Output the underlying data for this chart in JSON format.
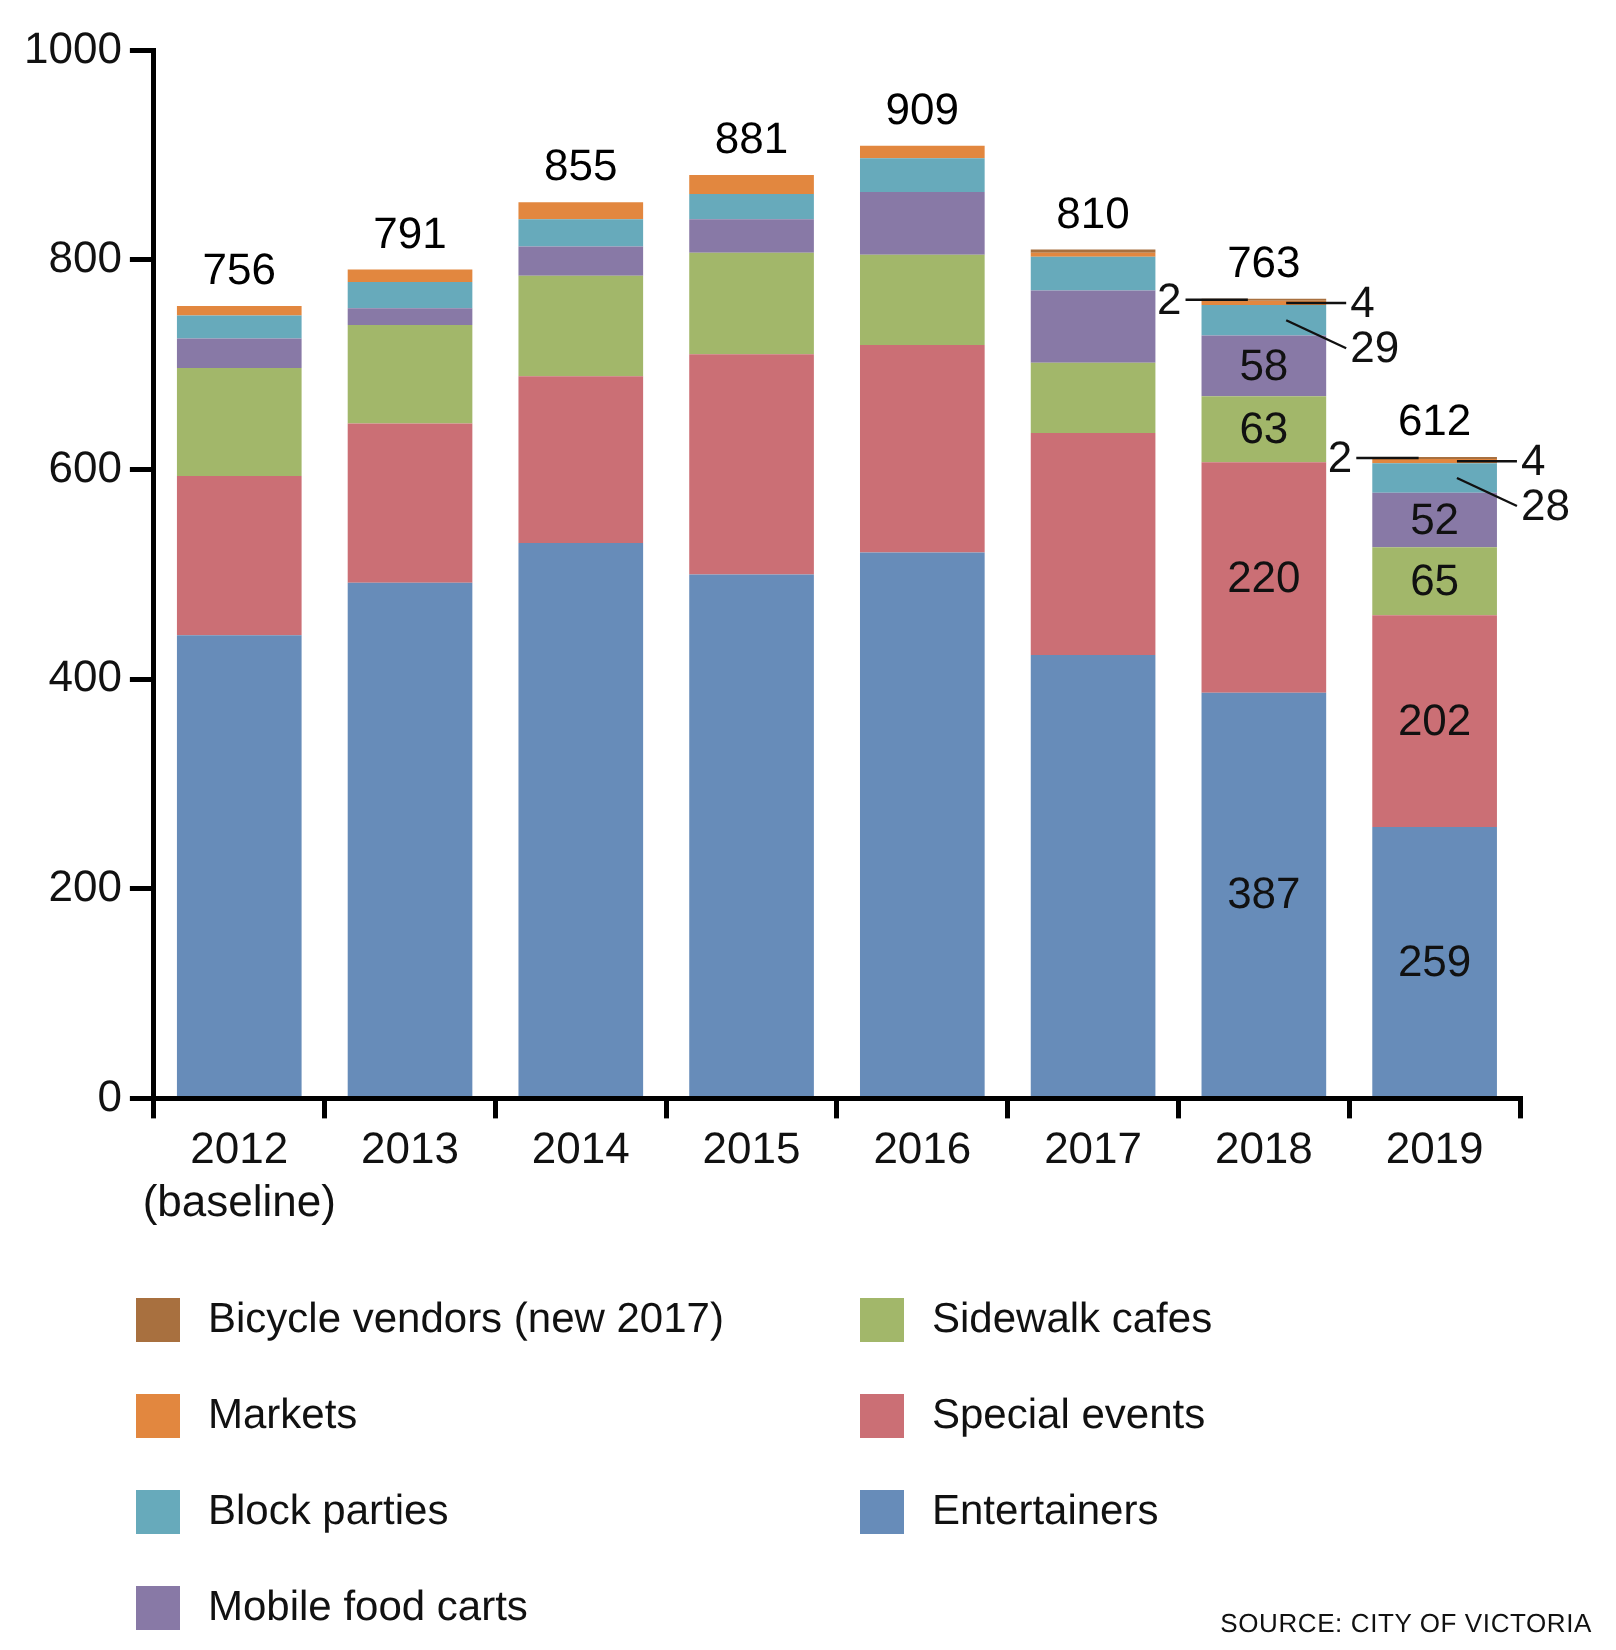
{
  "chart_data": {
    "type": "bar",
    "stacked": true,
    "categories": [
      "2012\n(baseline)",
      "2013",
      "2014",
      "2015",
      "2016",
      "2017",
      "2018",
      "2019"
    ],
    "series": [
      {
        "name": "Entertainers",
        "color": "#678cb9",
        "values": [
          442,
          492,
          530,
          500,
          521,
          423,
          387,
          259
        ],
        "value_labels": [
          null,
          null,
          null,
          null,
          null,
          null,
          "387",
          "259"
        ]
      },
      {
        "name": "Special events",
        "color": "#cb6f75",
        "values": [
          152,
          152,
          159,
          210,
          198,
          212,
          220,
          202
        ],
        "value_labels": [
          null,
          null,
          null,
          null,
          null,
          null,
          "220",
          "202"
        ]
      },
      {
        "name": "Sidewalk cafes",
        "color": "#a2b76a",
        "values": [
          103,
          94,
          96,
          97,
          86,
          67,
          63,
          65
        ],
        "value_labels": [
          null,
          null,
          null,
          null,
          null,
          null,
          "63",
          "65"
        ]
      },
      {
        "name": "Mobile food carts",
        "color": "#8879a6",
        "values": [
          28,
          16,
          28,
          32,
          60,
          69,
          58,
          52
        ],
        "value_labels": [
          null,
          null,
          null,
          null,
          null,
          null,
          "58",
          "52"
        ]
      },
      {
        "name": "Block parties",
        "color": "#67aabb",
        "values": [
          22,
          25,
          26,
          24,
          32,
          32,
          29,
          28
        ],
        "value_labels": [
          null,
          null,
          null,
          null,
          null,
          null,
          "29",
          "28"
        ]
      },
      {
        "name": "Markets",
        "color": "#e2873f",
        "values": [
          9,
          12,
          16,
          18,
          12,
          4,
          4,
          4
        ],
        "value_labels": [
          null,
          null,
          null,
          null,
          null,
          null,
          "4",
          "4"
        ]
      },
      {
        "name": "Bicycle vendors (new 2017)",
        "color": "#a8703f",
        "values": [
          null,
          null,
          null,
          null,
          null,
          3,
          2,
          2
        ],
        "value_labels": [
          null,
          null,
          null,
          null,
          null,
          null,
          "2",
          "2"
        ]
      }
    ],
    "totals": [
      "756",
      "791",
      "855",
      "881",
      "909",
      "810",
      "763",
      "612"
    ],
    "ylim": [
      0,
      1000
    ],
    "yticks": [
      0,
      200,
      400,
      600,
      800,
      1000
    ],
    "grid": false,
    "legend": "bottom",
    "annotations": [
      "SOURCE: CITY OF VICTORIA"
    ]
  }
}
